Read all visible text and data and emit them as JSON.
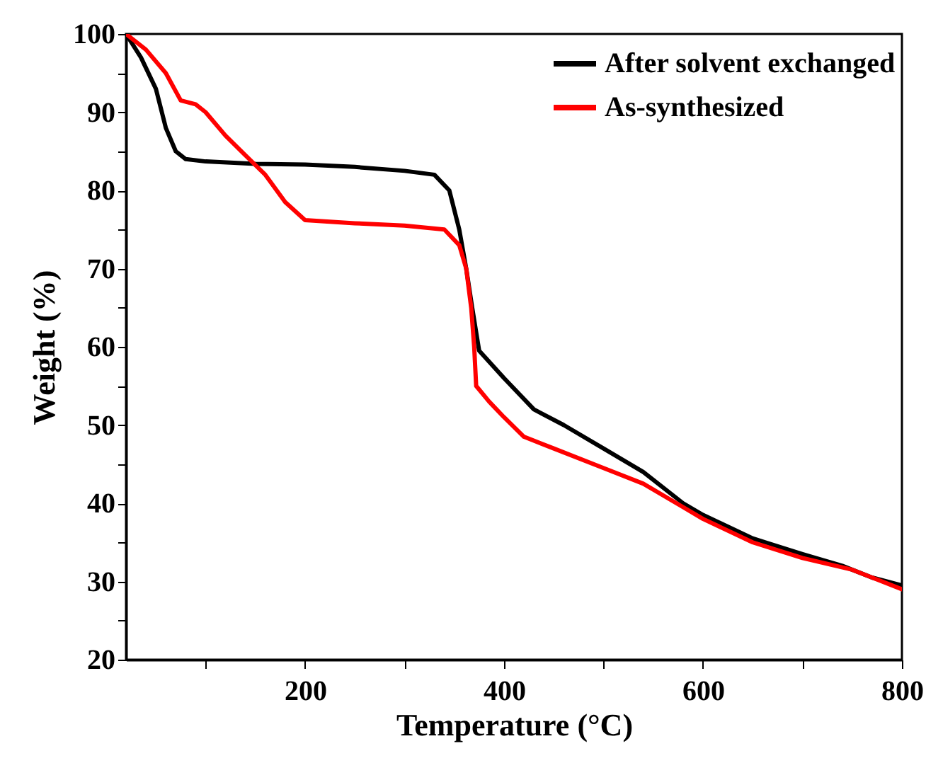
{
  "chart_data": {
    "type": "line",
    "xlabel": "Temperature (°C)",
    "ylabel": "Weight (%)",
    "xlim": [
      20,
      800
    ],
    "ylim": [
      20,
      100
    ],
    "xticks": [
      {
        "value": 100,
        "label": null
      },
      200,
      {
        "value": 300,
        "label": null
      },
      400,
      {
        "value": 500,
        "label": null
      },
      600,
      {
        "value": 700,
        "label": null
      },
      800
    ],
    "yticks": [
      20,
      {
        "value": 25,
        "label": null
      },
      30,
      {
        "value": 35,
        "label": null
      },
      40,
      {
        "value": 45,
        "label": null
      },
      50,
      {
        "value": 55,
        "label": null
      },
      60,
      {
        "value": 65,
        "label": null
      },
      70,
      {
        "value": 75,
        "label": null
      },
      80,
      {
        "value": 85,
        "label": null
      },
      90,
      {
        "value": 95,
        "label": null
      },
      100
    ],
    "legend": "top right",
    "grid": false,
    "marker": "none",
    "line_style": "solid",
    "series": [
      {
        "name": "After solvent exchanged",
        "color": "#000000",
        "x": [
          20,
          35,
          50,
          60,
          70,
          80,
          100,
          150,
          200,
          250,
          300,
          330,
          345,
          355,
          362,
          368,
          375,
          400,
          430,
          460,
          500,
          540,
          580,
          600,
          650,
          700,
          740,
          770,
          800
        ],
        "values": [
          100,
          97,
          93,
          88,
          85,
          84,
          83.7,
          83.4,
          83.3,
          83,
          82.5,
          82,
          80,
          75,
          70,
          65,
          59.5,
          56,
          52,
          50,
          47,
          44,
          40,
          38.5,
          35.5,
          33.5,
          32,
          30.5,
          29.5
        ]
      },
      {
        "name": "As-synthesized",
        "color": "#ff0000",
        "x": [
          20,
          40,
          60,
          75,
          90,
          100,
          120,
          140,
          160,
          180,
          200,
          250,
          300,
          340,
          355,
          362,
          367,
          370,
          372,
          385,
          400,
          420,
          450,
          500,
          540,
          580,
          600,
          650,
          700,
          750,
          780,
          800
        ],
        "values": [
          100,
          98,
          95,
          91.5,
          91,
          90,
          87,
          84.5,
          82,
          78.5,
          76.2,
          75.8,
          75.5,
          75,
          73,
          70,
          65,
          60,
          55,
          53,
          51,
          48.5,
          47,
          44.5,
          42.5,
          39.5,
          38,
          35,
          33,
          31.5,
          30,
          29
        ]
      }
    ]
  }
}
